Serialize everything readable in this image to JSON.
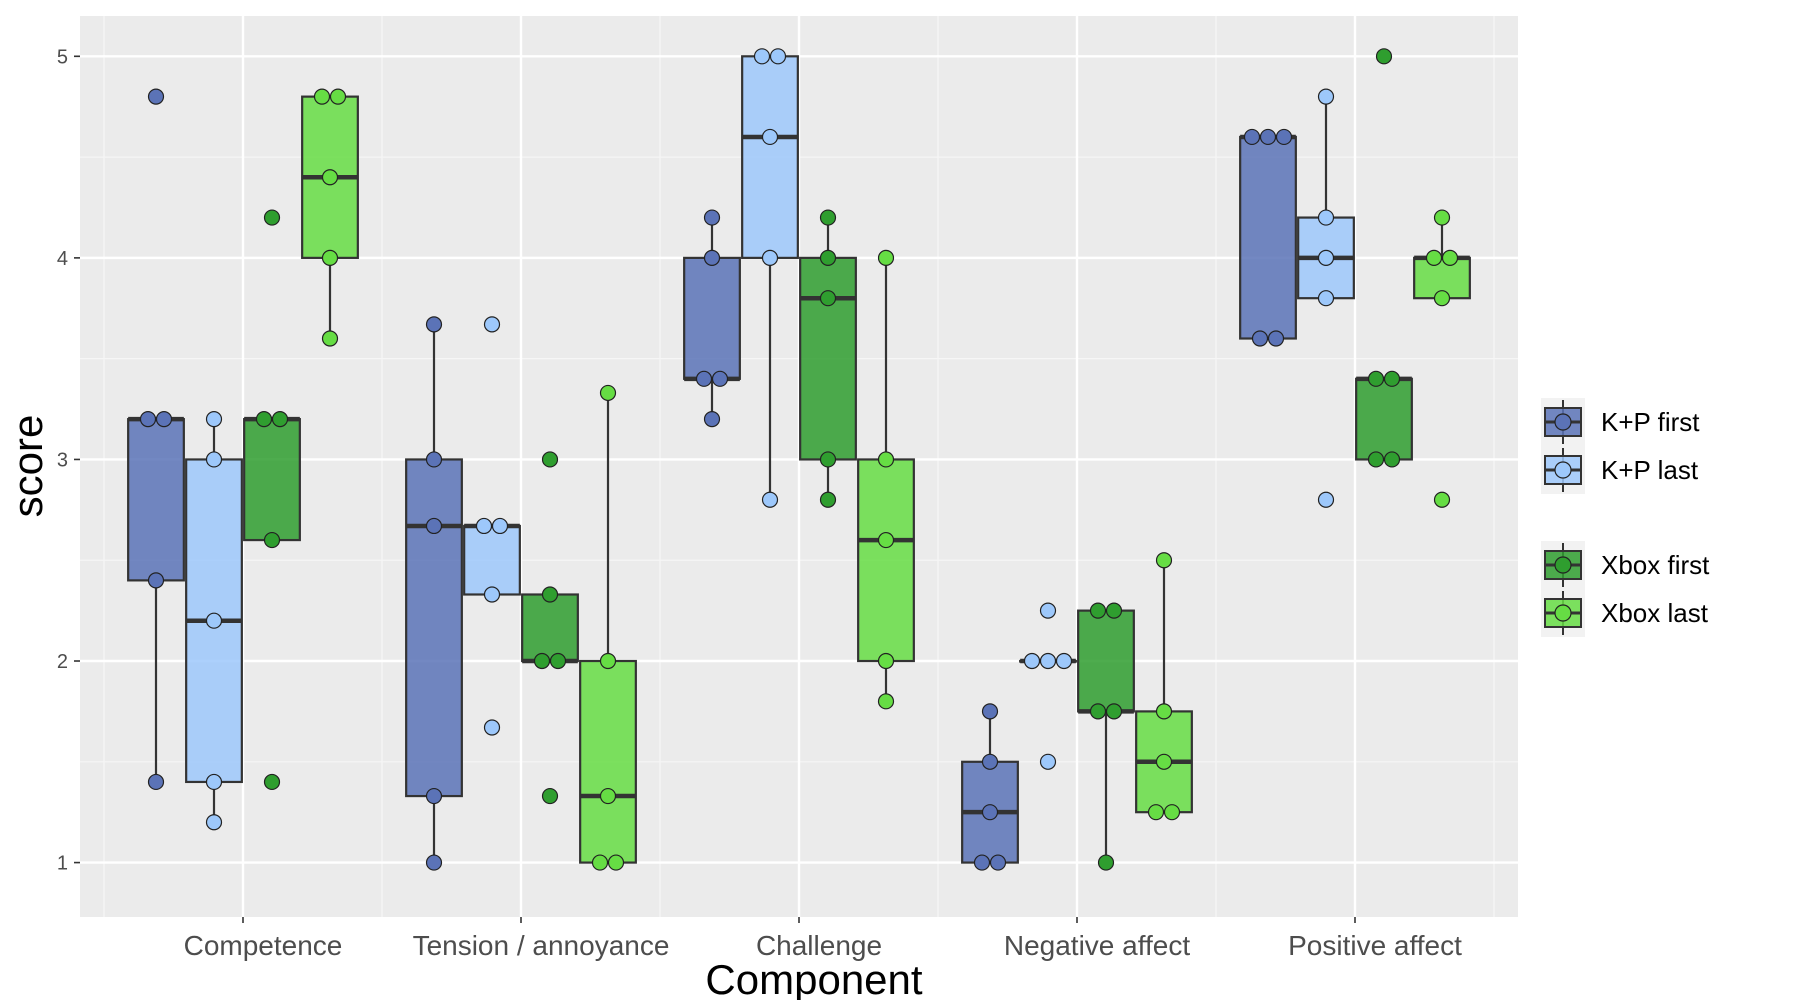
{
  "chart_data": {
    "type": "boxplot",
    "title": "",
    "xlabel": "Component",
    "ylabel": "score",
    "ylim": [
      0.73,
      5.2
    ],
    "yticks": [
      1,
      2,
      3,
      4,
      5
    ],
    "grid": true,
    "legend_position": "right",
    "categories": [
      "Competence",
      "Tension / annoyance",
      "Challenge",
      "Negative affect",
      "Positive affect"
    ],
    "series": [
      {
        "name": "K+P first",
        "color": "#5b73b7",
        "boxes": [
          {
            "q1": 2.4,
            "median": 3.2,
            "q3": 3.2,
            "whisker_low": 1.4,
            "whisker_high": 3.2,
            "points": [
              4.8,
              3.2,
              3.2,
              2.4,
              1.4
            ]
          },
          {
            "q1": 1.33,
            "median": 2.67,
            "q3": 3.0,
            "whisker_low": 1.0,
            "whisker_high": 3.67,
            "points": [
              3.67,
              3.0,
              2.67,
              1.33,
              1.0
            ]
          },
          {
            "q1": 3.4,
            "median": 3.4,
            "q3": 4.0,
            "whisker_low": 3.2,
            "whisker_high": 4.2,
            "points": [
              4.2,
              4.0,
              3.4,
              3.4,
              3.2
            ]
          },
          {
            "q1": 1.0,
            "median": 1.25,
            "q3": 1.5,
            "whisker_low": 1.0,
            "whisker_high": 1.75,
            "points": [
              1.75,
              1.5,
              1.25,
              1.0,
              1.0
            ]
          },
          {
            "q1": 3.6,
            "median": 4.6,
            "q3": 4.6,
            "whisker_low": 3.6,
            "whisker_high": 4.6,
            "points": [
              4.6,
              4.6,
              4.6,
              3.6,
              3.6
            ]
          }
        ]
      },
      {
        "name": "K+P last",
        "color": "#9dc8fb",
        "boxes": [
          {
            "q1": 1.4,
            "median": 2.2,
            "q3": 3.0,
            "whisker_low": 1.2,
            "whisker_high": 3.2,
            "points": [
              3.2,
              3.0,
              2.2,
              1.4,
              1.2
            ]
          },
          {
            "q1": 2.33,
            "median": 2.67,
            "q3": 2.67,
            "whisker_low": 2.33,
            "whisker_high": 2.67,
            "points": [
              3.67,
              2.67,
              2.67,
              2.33,
              1.67
            ]
          },
          {
            "q1": 4.0,
            "median": 4.6,
            "q3": 5.0,
            "whisker_low": 2.8,
            "whisker_high": 5.0,
            "points": [
              5.0,
              5.0,
              4.6,
              4.0,
              2.8
            ]
          },
          {
            "q1": 2.0,
            "median": 2.0,
            "q3": 2.0,
            "whisker_low": 2.0,
            "whisker_high": 2.0,
            "points": [
              2.25,
              2.0,
              2.0,
              2.0,
              1.5
            ]
          },
          {
            "q1": 3.8,
            "median": 4.0,
            "q3": 4.2,
            "whisker_low": 3.8,
            "whisker_high": 4.8,
            "points": [
              4.8,
              4.2,
              4.0,
              3.8,
              2.8
            ]
          }
        ]
      },
      {
        "name": "Xbox first",
        "color": "#2f9e2f",
        "boxes": [
          {
            "q1": 2.6,
            "median": 3.2,
            "q3": 3.2,
            "whisker_low": 2.6,
            "whisker_high": 3.2,
            "points": [
              4.2,
              3.2,
              3.2,
              2.6,
              1.4
            ]
          },
          {
            "q1": 2.0,
            "median": 2.0,
            "q3": 2.33,
            "whisker_low": 2.0,
            "whisker_high": 2.33,
            "points": [
              3.0,
              2.33,
              2.0,
              2.0,
              1.33
            ]
          },
          {
            "q1": 3.0,
            "median": 3.8,
            "q3": 4.0,
            "whisker_low": 2.8,
            "whisker_high": 4.2,
            "points": [
              4.2,
              4.0,
              3.8,
              3.0,
              2.8
            ]
          },
          {
            "q1": 1.75,
            "median": 1.75,
            "q3": 2.25,
            "whisker_low": 1.0,
            "whisker_high": 2.25,
            "points": [
              2.25,
              2.25,
              1.75,
              1.75,
              1.0
            ]
          },
          {
            "q1": 3.0,
            "median": 3.4,
            "q3": 3.4,
            "whisker_low": 3.0,
            "whisker_high": 3.4,
            "points": [
              5.0,
              3.4,
              3.4,
              3.0,
              3.0
            ]
          }
        ]
      },
      {
        "name": "Xbox last",
        "color": "#66dd44",
        "boxes": [
          {
            "q1": 4.0,
            "median": 4.4,
            "q3": 4.8,
            "whisker_low": 3.6,
            "whisker_high": 4.8,
            "points": [
              4.8,
              4.8,
              4.4,
              4.0,
              3.6
            ]
          },
          {
            "q1": 1.0,
            "median": 1.33,
            "q3": 2.0,
            "whisker_low": 1.0,
            "whisker_high": 3.33,
            "points": [
              3.33,
              2.0,
              1.33,
              1.0,
              1.0
            ]
          },
          {
            "q1": 2.0,
            "median": 2.6,
            "q3": 3.0,
            "whisker_low": 1.8,
            "whisker_high": 4.0,
            "points": [
              4.0,
              3.0,
              2.6,
              2.0,
              1.8
            ]
          },
          {
            "q1": 1.25,
            "median": 1.5,
            "q3": 1.75,
            "whisker_low": 1.25,
            "whisker_high": 2.5,
            "points": [
              2.5,
              1.75,
              1.5,
              1.25,
              1.25
            ]
          },
          {
            "q1": 3.8,
            "median": 4.0,
            "q3": 4.0,
            "whisker_low": 3.8,
            "whisker_high": 4.2,
            "points": [
              4.2,
              4.0,
              4.0,
              3.8,
              2.8
            ]
          }
        ]
      }
    ]
  }
}
